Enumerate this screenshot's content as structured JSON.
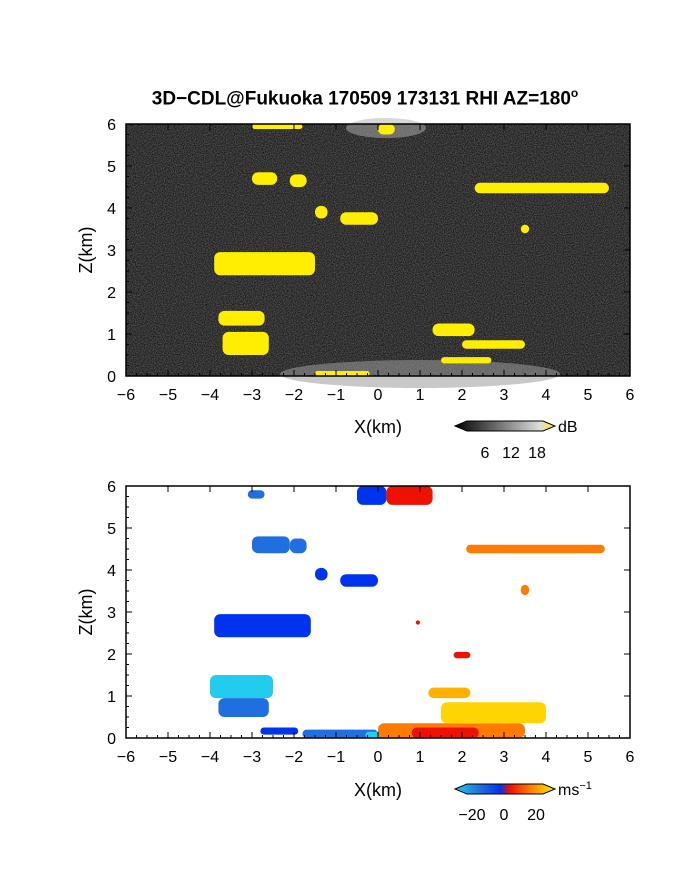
{
  "title": "3D−CDL@Fukuoka 170509 173131 RHI AZ=180",
  "title_degree": "o",
  "colors": {
    "yellow": "#ffee00",
    "snr_bg_dark": "#1a1a1a",
    "blue": "#0033ee",
    "mid_blue": "#1f6fe0",
    "cyan": "#22ccee",
    "red": "#ee1100",
    "orange": "#ff7a00",
    "light_orange": "#ffb000",
    "gold": "#ffd400"
  },
  "chart_data": [
    {
      "type": "heatmap",
      "name": "snr",
      "xlabel": "X(km)",
      "ylabel": "Z(km)",
      "xlim": [
        -6,
        6
      ],
      "ylim": [
        0,
        6
      ],
      "x_ticks": [
        "−6",
        "−5",
        "−4",
        "−3",
        "−2",
        "−1",
        "0",
        "1",
        "2",
        "3",
        "4",
        "5",
        "6"
      ],
      "y_ticks": [
        "0",
        "1",
        "2",
        "3",
        "4",
        "5",
        "6"
      ],
      "colorbar": {
        "unit": "dB",
        "ticks": [
          "6",
          "12",
          "18"
        ],
        "range": [
          0,
          20
        ]
      },
      "highlight_color": "yellow",
      "regions": [
        {
          "x": [
            -3.0,
            -2.4
          ],
          "z": [
            4.55,
            4.85
          ]
        },
        {
          "x": [
            -2.1,
            -1.7
          ],
          "z": [
            4.5,
            4.8
          ]
        },
        {
          "x": [
            -1.5,
            -1.2
          ],
          "z": [
            3.75,
            4.05
          ]
        },
        {
          "x": [
            -0.9,
            0.0
          ],
          "z": [
            3.6,
            3.9
          ]
        },
        {
          "x": [
            2.3,
            5.5
          ],
          "z": [
            4.35,
            4.6
          ]
        },
        {
          "x": [
            3.4,
            3.6
          ],
          "z": [
            3.4,
            3.6
          ]
        },
        {
          "x": [
            -3.9,
            -1.5
          ],
          "z": [
            2.4,
            2.95
          ]
        },
        {
          "x": [
            -3.8,
            -2.7
          ],
          "z": [
            1.2,
            1.55
          ]
        },
        {
          "x": [
            -3.7,
            -2.6
          ],
          "z": [
            0.5,
            1.05
          ]
        },
        {
          "x": [
            1.3,
            2.3
          ],
          "z": [
            0.95,
            1.25
          ]
        },
        {
          "x": [
            2.0,
            3.5
          ],
          "z": [
            0.65,
            0.85
          ]
        },
        {
          "x": [
            1.5,
            2.7
          ],
          "z": [
            0.3,
            0.45
          ]
        },
        {
          "x": [
            -1.5,
            -0.2
          ],
          "z": [
            0.0,
            0.12
          ]
        },
        {
          "x": [
            -3.0,
            -1.8
          ],
          "z": [
            5.88,
            6.0
          ]
        },
        {
          "x": [
            0.0,
            0.4
          ],
          "z": [
            5.75,
            6.0
          ]
        }
      ]
    },
    {
      "type": "heatmap",
      "name": "doppler_velocity",
      "xlabel": "X(km)",
      "ylabel": "Z(km)",
      "xlim": [
        -6,
        6
      ],
      "ylim": [
        0,
        6
      ],
      "x_ticks": [
        "−6",
        "−5",
        "−4",
        "−3",
        "−2",
        "−1",
        "0",
        "1",
        "2",
        "3",
        "4",
        "5",
        "6"
      ],
      "y_ticks": [
        "0",
        "1",
        "2",
        "3",
        "4",
        "5",
        "6"
      ],
      "colorbar": {
        "unit": "ms",
        "unit_exponent": "−1",
        "ticks": [
          "−20",
          "0",
          "20"
        ],
        "range": [
          -25,
          25
        ]
      },
      "regions": [
        {
          "x": [
            -3.0,
            -2.1
          ],
          "z": [
            4.4,
            4.8
          ],
          "color": "mid_blue"
        },
        {
          "x": [
            -2.1,
            -1.7
          ],
          "z": [
            4.4,
            4.75
          ],
          "color": "mid_blue"
        },
        {
          "x": [
            -1.5,
            -1.2
          ],
          "z": [
            3.75,
            4.05
          ],
          "color": "blue"
        },
        {
          "x": [
            -0.9,
            0.0
          ],
          "z": [
            3.6,
            3.9
          ],
          "color": "blue"
        },
        {
          "x": [
            2.1,
            5.4
          ],
          "z": [
            4.4,
            4.6
          ],
          "color": "orange"
        },
        {
          "x": [
            3.4,
            3.6
          ],
          "z": [
            3.4,
            3.65
          ],
          "color": "orange"
        },
        {
          "x": [
            -3.9,
            -1.6
          ],
          "z": [
            2.4,
            2.95
          ],
          "color": "blue"
        },
        {
          "x": [
            -4.0,
            -2.5
          ],
          "z": [
            0.95,
            1.5
          ],
          "color": "cyan"
        },
        {
          "x": [
            -3.8,
            -2.6
          ],
          "z": [
            0.5,
            0.95
          ],
          "color": "mid_blue"
        },
        {
          "x": [
            -2.8,
            -1.9
          ],
          "z": [
            0.08,
            0.25
          ],
          "color": "blue"
        },
        {
          "x": [
            -1.8,
            0.0
          ],
          "z": [
            0.0,
            0.2
          ],
          "color": "mid_blue"
        },
        {
          "x": [
            -0.3,
            0.1
          ],
          "z": [
            0.0,
            0.15
          ],
          "color": "cyan"
        },
        {
          "x": [
            0.0,
            3.5
          ],
          "z": [
            0.0,
            0.35
          ],
          "color": "orange"
        },
        {
          "x": [
            0.8,
            2.4
          ],
          "z": [
            0.0,
            0.25
          ],
          "color": "red"
        },
        {
          "x": [
            1.2,
            2.2
          ],
          "z": [
            0.95,
            1.2
          ],
          "color": "light_orange"
        },
        {
          "x": [
            1.5,
            4.0
          ],
          "z": [
            0.35,
            0.85
          ],
          "color": "gold"
        },
        {
          "x": [
            -0.5,
            0.2
          ],
          "z": [
            5.55,
            6.0
          ],
          "color": "blue"
        },
        {
          "x": [
            0.2,
            1.3
          ],
          "z": [
            5.55,
            6.0
          ],
          "color": "red"
        },
        {
          "x": [
            -3.1,
            -2.7
          ],
          "z": [
            5.7,
            5.9
          ],
          "color": "mid_blue"
        },
        {
          "x": [
            1.8,
            2.2
          ],
          "z": [
            1.9,
            2.05
          ],
          "color": "red"
        },
        {
          "x": [
            0.9,
            1.0
          ],
          "z": [
            2.7,
            2.8
          ],
          "color": "red"
        }
      ]
    }
  ]
}
